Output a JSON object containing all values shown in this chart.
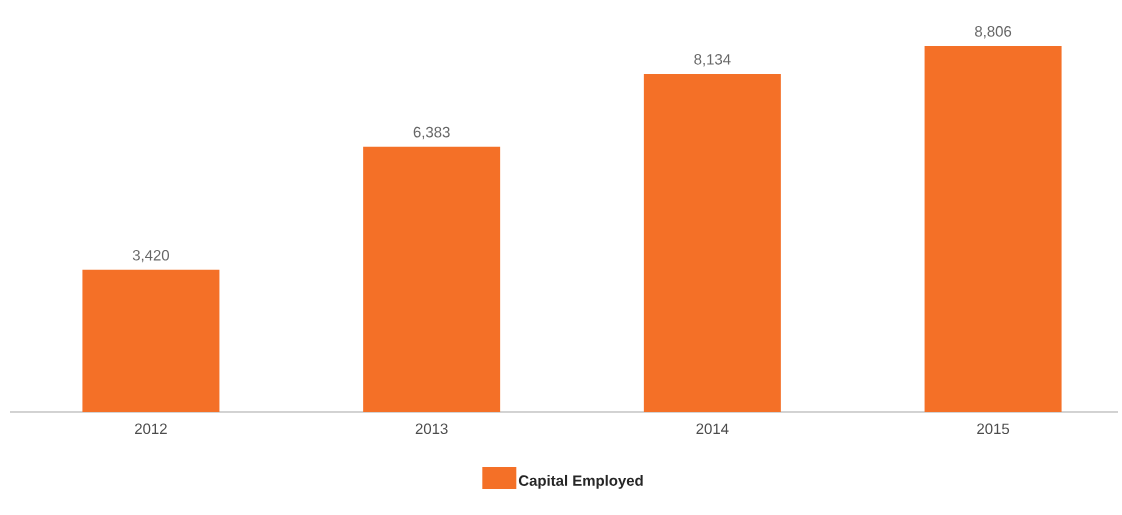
{
  "chart_data": {
    "type": "bar",
    "categories": [
      "2012",
      "2013",
      "2014",
      "2015"
    ],
    "series": [
      {
        "name": "Capital Employed",
        "color": "#f47027",
        "values": [
          3420,
          6383,
          8134,
          8806
        ],
        "value_labels": [
          "3,420",
          "6,383",
          "8,134",
          "8,806"
        ]
      }
    ],
    "legend": "bottom"
  }
}
